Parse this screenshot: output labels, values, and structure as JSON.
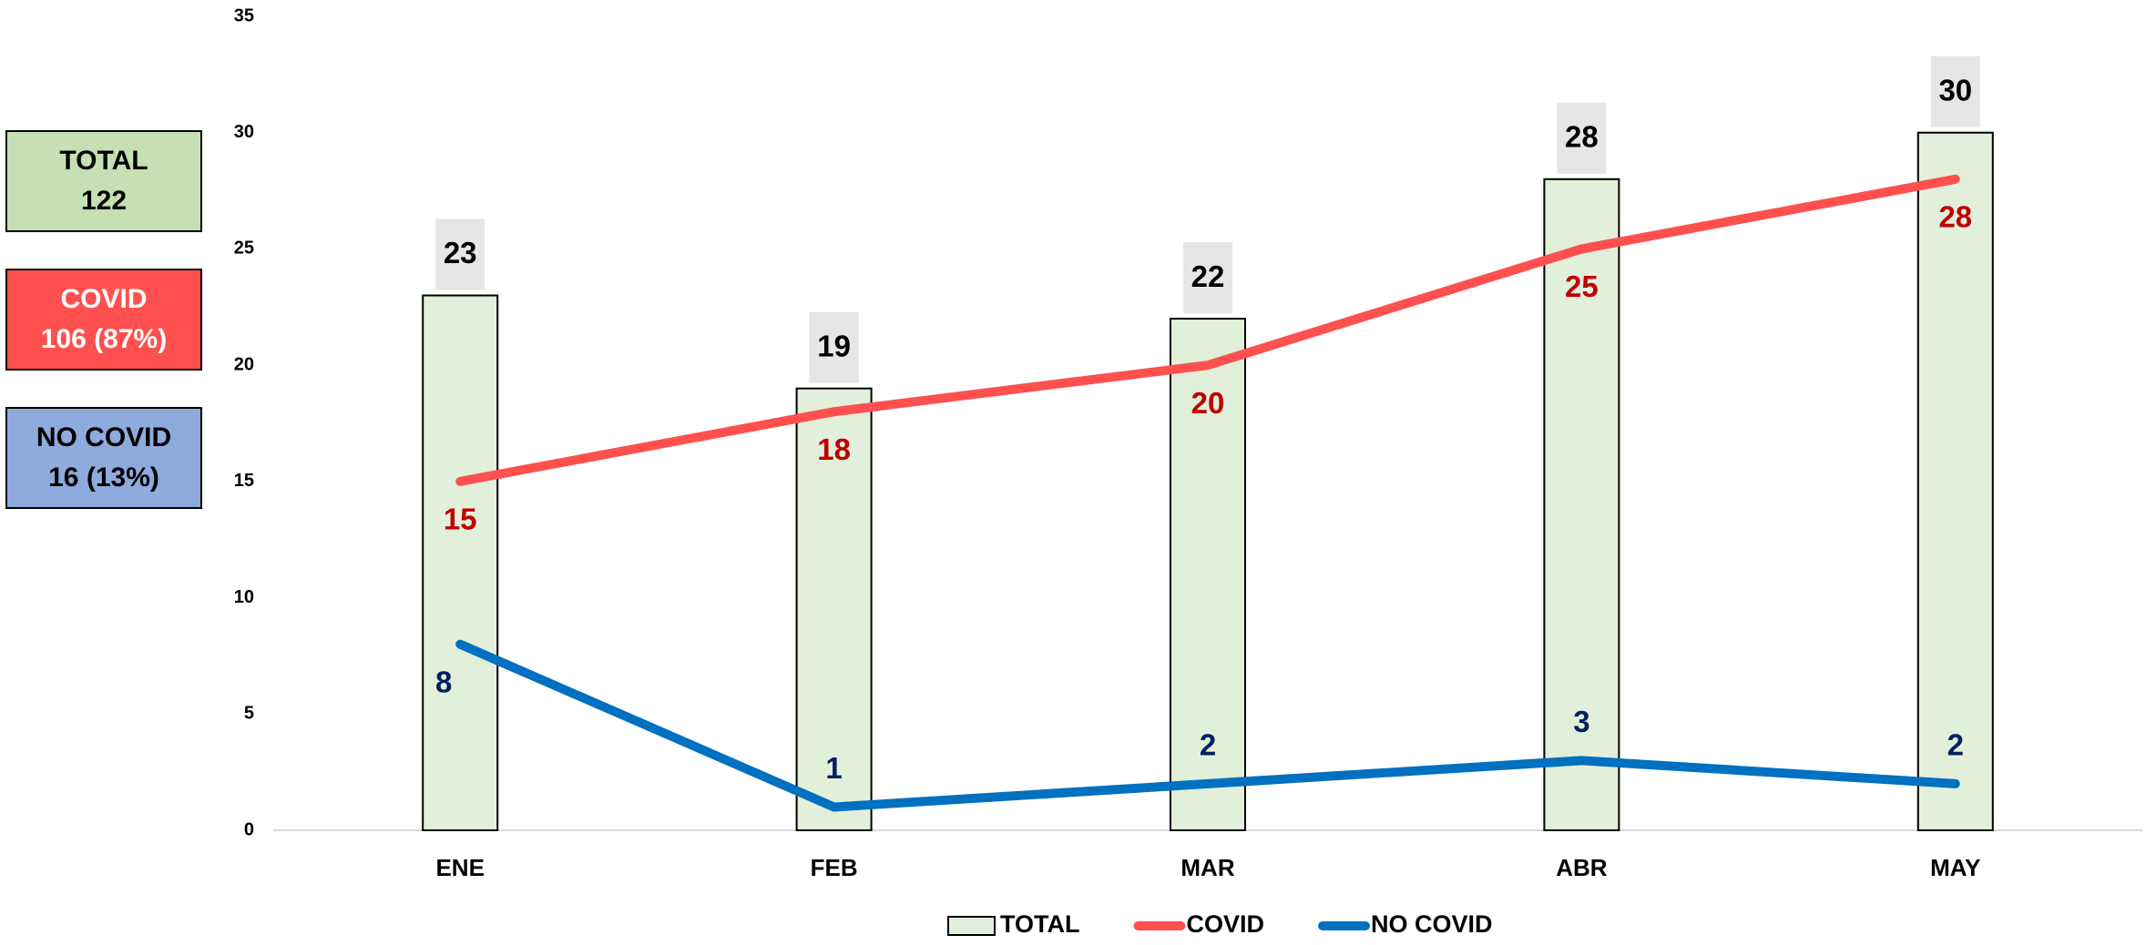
{
  "chart_data": {
    "type": "bar_line",
    "categories": [
      "ENE",
      "FEB",
      "MAR",
      "ABR",
      "MAY"
    ],
    "series": [
      {
        "name": "TOTAL",
        "type": "bar",
        "color": "#e2efda",
        "label_color": "#000000",
        "values": [
          23,
          19,
          22,
          28,
          30
        ]
      },
      {
        "name": "COVID",
        "type": "line",
        "color": "#ff5050",
        "label_color": "#c00000",
        "values": [
          15,
          18,
          20,
          25,
          28
        ]
      },
      {
        "name": "NO COVID",
        "type": "line",
        "color": "#0070c0",
        "label_color": "#002060",
        "values": [
          8,
          1,
          2,
          3,
          2
        ]
      }
    ],
    "ylim": [
      0,
      35
    ],
    "yticks": [
      0,
      5,
      10,
      15,
      20,
      25,
      30,
      35
    ],
    "legend": "bottom",
    "summary": [
      {
        "label": "TOTAL",
        "text": "122",
        "color": "#c5e0b4"
      },
      {
        "label": "COVID",
        "text": "106 (87%)",
        "color": "#ff5050"
      },
      {
        "label": "NO COVID",
        "text": "16 (13%)",
        "color": "#8faadc"
      }
    ]
  }
}
